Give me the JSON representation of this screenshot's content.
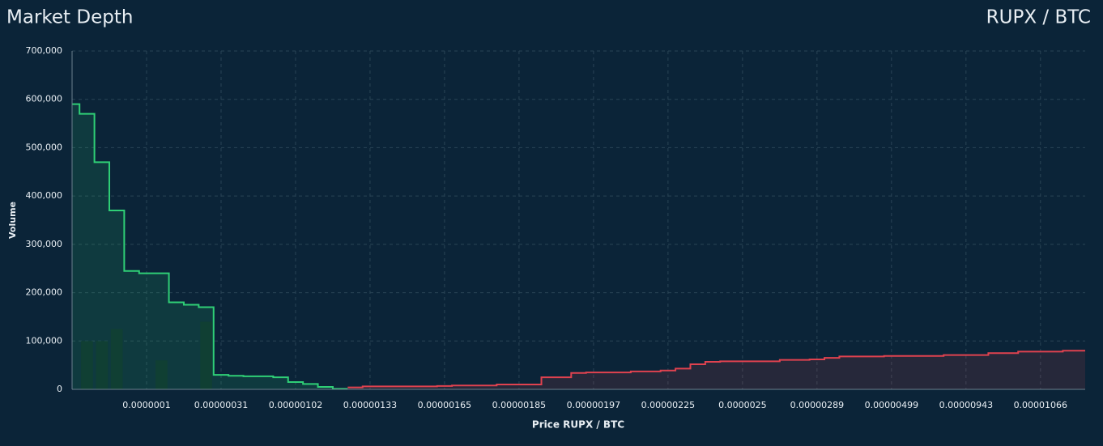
{
  "chart_data": {
    "type": "depth",
    "title": "Market Depth",
    "subtitle": "RUPX / BTC",
    "x_label": "Price RUPX / BTC",
    "y_label": "Volume",
    "categories": [
      null,
      null,
      null,
      null,
      null,
      "0.0000001",
      null,
      null,
      null,
      null,
      "0.00000031",
      null,
      null,
      null,
      null,
      "0.00000102",
      null,
      null,
      null,
      null,
      "0.00000133",
      null,
      null,
      null,
      null,
      "0.00000165",
      null,
      null,
      null,
      null,
      "0.00000185",
      null,
      null,
      null,
      null,
      "0.00000197",
      null,
      null,
      null,
      null,
      "0.00000225",
      null,
      null,
      null,
      null,
      "0.0000025",
      null,
      null,
      null,
      null,
      "0.00000289",
      null,
      null,
      null,
      null,
      "0.00000499",
      null,
      null,
      null,
      null,
      "0.00000943",
      null,
      null,
      null,
      null,
      "0.00001066",
      null,
      null,
      null
    ],
    "series": [
      {
        "color": "#2fcf76",
        "values": [
          590000,
          570000,
          470000,
          370000,
          245000,
          240000,
          240000,
          180000,
          175000,
          170000,
          30000,
          28000,
          27000,
          27000,
          25000,
          15000,
          11000,
          5000,
          1000,
          null,
          null,
          null,
          null,
          null,
          null,
          null,
          null,
          null,
          null,
          null,
          null,
          null,
          null,
          null,
          null,
          null,
          null,
          null,
          null,
          null,
          null,
          null,
          null,
          null,
          null,
          null,
          null,
          null,
          null,
          null,
          null,
          null,
          null,
          null,
          null,
          null,
          null,
          null,
          null,
          null,
          null,
          null,
          null,
          null,
          null,
          null,
          null,
          null,
          null
        ]
      },
      {
        "color": "#e0424f",
        "values": [
          null,
          null,
          null,
          null,
          null,
          null,
          null,
          null,
          null,
          null,
          null,
          null,
          null,
          null,
          null,
          null,
          null,
          null,
          null,
          4000,
          6000,
          6000,
          6000,
          6000,
          6000,
          7000,
          8000,
          8000,
          8000,
          10000,
          10000,
          10000,
          25000,
          25000,
          34000,
          35000,
          35000,
          35000,
          37000,
          37000,
          39000,
          43000,
          52000,
          57000,
          58000,
          58000,
          58000,
          58000,
          61000,
          61000,
          62000,
          65000,
          68000,
          68000,
          68000,
          69000,
          69000,
          69000,
          69000,
          71000,
          71000,
          71000,
          75000,
          75000,
          78000,
          78000,
          78000,
          80000,
          80000
        ]
      }
    ],
    "order_bars": {
      "color": "#0c2a2a",
      "values": [
        null,
        100000,
        100000,
        125000,
        null,
        null,
        60000,
        null,
        null,
        140000,
        null,
        null,
        null,
        null,
        null,
        null,
        null,
        null,
        null,
        null,
        null,
        null,
        null,
        null,
        null,
        null,
        null,
        null,
        null,
        null,
        null,
        null,
        null,
        null,
        null,
        null,
        null,
        null,
        null,
        null,
        null,
        null,
        null,
        null,
        null,
        null,
        null,
        null,
        null,
        null,
        null,
        null,
        null,
        null,
        null,
        null,
        null,
        null,
        null,
        null,
        null,
        null,
        null,
        null,
        null,
        null,
        null,
        null,
        null
      ]
    },
    "ylim": [
      0,
      700000
    ],
    "yticks": [
      0,
      {
        "value": 100000,
        "label": "100,000"
      },
      {
        "value": 200000,
        "label": "200,000"
      },
      {
        "value": 300000,
        "label": "300,000"
      },
      {
        "value": 400000,
        "label": "400,000"
      },
      {
        "value": 500000,
        "label": "500,000"
      },
      {
        "value": 600000,
        "label": "600,000"
      },
      {
        "value": 700000,
        "label": "700,000"
      }
    ],
    "grid": true
  }
}
